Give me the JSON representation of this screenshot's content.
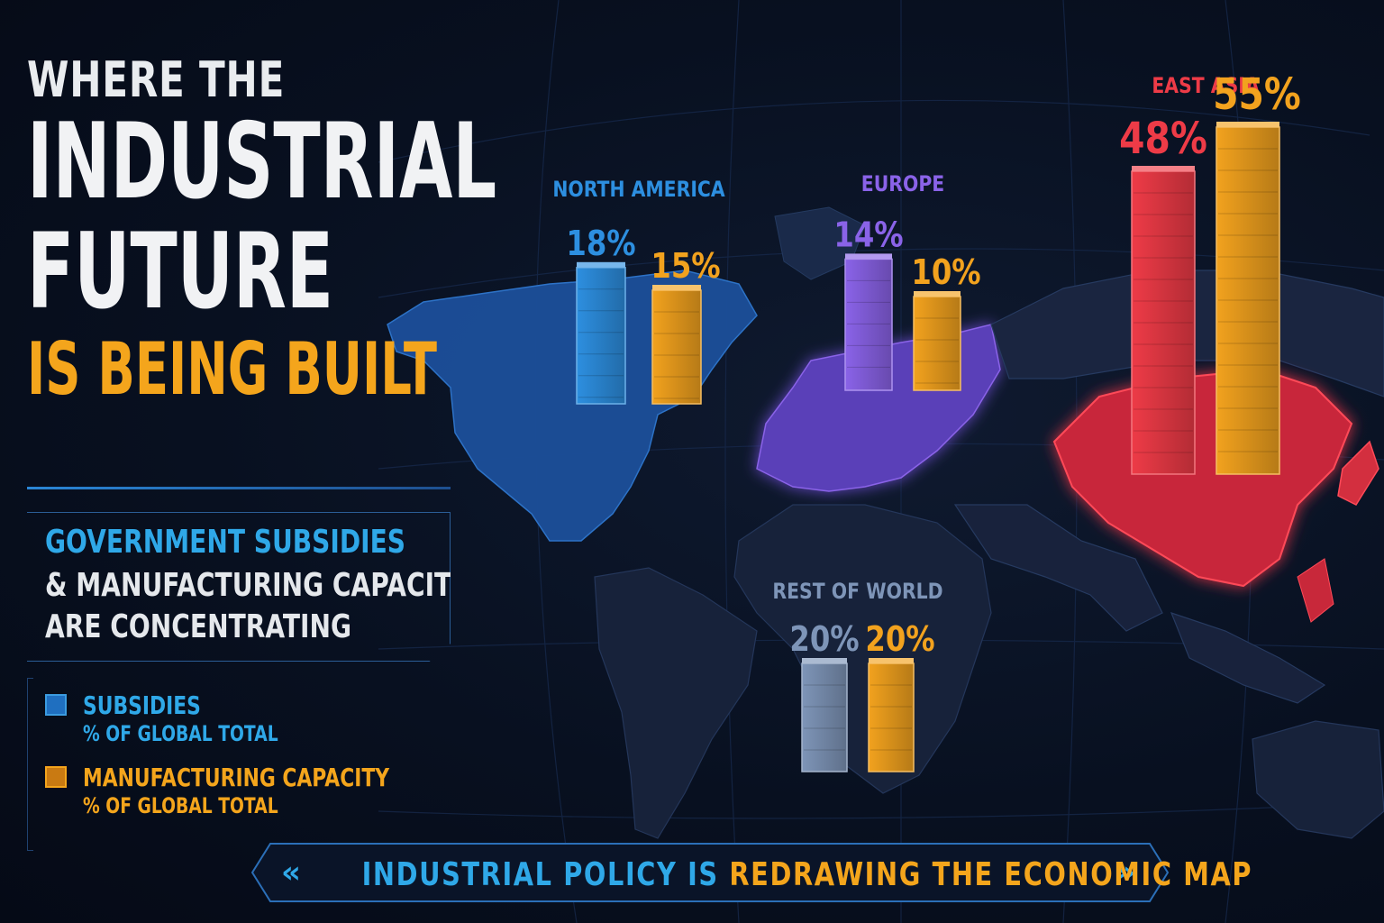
{
  "title": {
    "line1": "WHERE THE",
    "line2": "INDUSTRIAL",
    "line3": "FUTURE",
    "line4": "IS BEING BUILT"
  },
  "subtitle": {
    "line1": "GOVERNMENT SUBSIDIES",
    "line2": "& MANUFACTURING CAPACITY",
    "line3": "ARE CONCENTRATING"
  },
  "legend": [
    {
      "label": "SUBSIDIES",
      "sublabel": "% OF GLOBAL TOTAL",
      "color": "#1f6fc0",
      "text_color": "#2fa8e8"
    },
    {
      "label": "MANUFACTURING CAPACITY",
      "sublabel": "% OF GLOBAL TOTAL",
      "color": "#e0901a",
      "text_color": "#f4a51c"
    }
  ],
  "banner": {
    "part1": "INDUSTRIAL POLICY IS ",
    "part2": "REDRAWING THE ECONOMIC MAP",
    "chevron_left": "«",
    "chevron_right": "»"
  },
  "chart_data": {
    "type": "bar",
    "categories": [
      "NORTH AMERICA",
      "EUROPE",
      "EAST ASIA",
      "REST OF WORLD"
    ],
    "series": [
      {
        "name": "SUBSIDIES",
        "values": [
          18,
          14,
          48,
          20
        ],
        "labels": [
          "18%",
          "14%",
          "48%",
          "20%"
        ]
      },
      {
        "name": "MANUFACTURING CAPACITY",
        "values": [
          15,
          10,
          55,
          20
        ],
        "labels": [
          "15%",
          "10%",
          "55%",
          "20%"
        ]
      }
    ],
    "unit": "% of global total",
    "region_colors": {
      "NORTH AMERICA": "#2d8fe0",
      "EUROPE": "#8a63e8",
      "EAST ASIA": "#ee3b47",
      "REST OF WORLD": "#7e95b8"
    },
    "capacity_color": "#f2a21e"
  }
}
